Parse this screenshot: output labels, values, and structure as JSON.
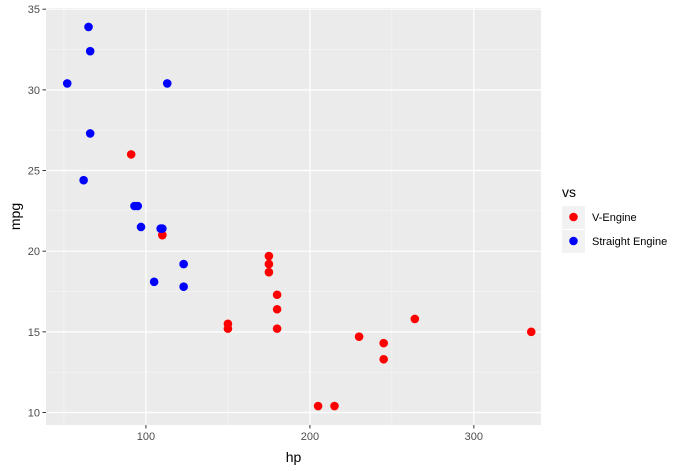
{
  "chart_data": {
    "type": "scatter",
    "title": "",
    "xlabel": "hp",
    "ylabel": "mpg",
    "xlim": [
      39.05,
      340.95
    ],
    "ylim": [
      9.225,
      35.075
    ],
    "x_ticks": [
      100,
      200,
      300
    ],
    "y_ticks": [
      10,
      15,
      20,
      25,
      30,
      35
    ],
    "grid": true,
    "legend": {
      "title": "vs",
      "placement": "right",
      "entries": [
        "V-Engine",
        "Straight Engine"
      ]
    },
    "colors": {
      "panel": "#ebebeb",
      "V-Engine": "#ff0000",
      "Straight Engine": "#0000ff"
    },
    "series": [
      {
        "name": "V-Engine",
        "color": "#ff0000",
        "points": [
          {
            "x": 110,
            "y": 21.0
          },
          {
            "x": 110,
            "y": 21.0
          },
          {
            "x": 175,
            "y": 18.7
          },
          {
            "x": 245,
            "y": 14.3
          },
          {
            "x": 180,
            "y": 16.4
          },
          {
            "x": 180,
            "y": 17.3
          },
          {
            "x": 180,
            "y": 15.2
          },
          {
            "x": 205,
            "y": 10.4
          },
          {
            "x": 215,
            "y": 10.4
          },
          {
            "x": 230,
            "y": 14.7
          },
          {
            "x": 150,
            "y": 15.5
          },
          {
            "x": 150,
            "y": 15.2
          },
          {
            "x": 245,
            "y": 13.3
          },
          {
            "x": 175,
            "y": 19.2
          },
          {
            "x": 91,
            "y": 26.0
          },
          {
            "x": 264,
            "y": 15.8
          },
          {
            "x": 175,
            "y": 19.7
          },
          {
            "x": 335,
            "y": 15.0
          }
        ]
      },
      {
        "name": "Straight Engine",
        "color": "#0000ff",
        "points": [
          {
            "x": 93,
            "y": 22.8
          },
          {
            "x": 110,
            "y": 21.4
          },
          {
            "x": 105,
            "y": 18.1
          },
          {
            "x": 62,
            "y": 24.4
          },
          {
            "x": 95,
            "y": 22.8
          },
          {
            "x": 123,
            "y": 19.2
          },
          {
            "x": 123,
            "y": 17.8
          },
          {
            "x": 66,
            "y": 32.4
          },
          {
            "x": 52,
            "y": 30.4
          },
          {
            "x": 65,
            "y": 33.9
          },
          {
            "x": 97,
            "y": 21.5
          },
          {
            "x": 66,
            "y": 27.3
          },
          {
            "x": 113,
            "y": 30.4
          },
          {
            "x": 109,
            "y": 21.4
          }
        ]
      }
    ]
  }
}
